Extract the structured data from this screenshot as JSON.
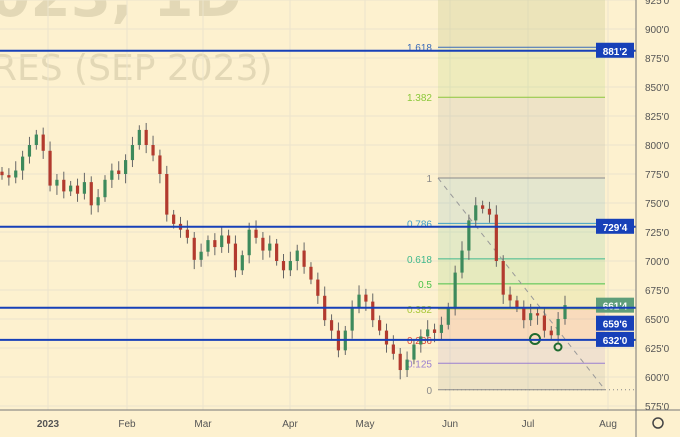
{
  "watermark": {
    "line1": "023, 1D",
    "line2": "RES (SEP 2023)"
  },
  "colors": {
    "background": "#fdf1cf",
    "up": "#3d8a5c",
    "down": "#b23a2e",
    "hline": "#1740b8",
    "grid": "#ebe4cc"
  },
  "chart_data": {
    "type": "candlestick",
    "x_ticks": [
      "2023",
      "Feb",
      "Mar",
      "Apr",
      "May",
      "Jun",
      "Jul",
      "Aug"
    ],
    "y_ticks": [
      "575'0",
      "600'0",
      "625'0",
      "650'0",
      "675'0",
      "700'0",
      "725'0",
      "750'0",
      "775'0",
      "800'0",
      "825'0",
      "850'0",
      "875'0",
      "900'0",
      "925'0"
    ],
    "ylim": [
      575,
      925
    ],
    "closes": [
      774,
      772,
      778,
      790,
      800,
      809,
      795,
      765,
      770,
      760,
      765,
      758,
      768,
      748,
      755,
      770,
      778,
      775,
      787,
      800,
      813,
      800,
      791,
      775,
      740,
      732,
      727,
      720,
      701,
      708,
      718,
      712,
      722,
      715,
      692,
      705,
      727,
      720,
      709,
      715,
      700,
      692,
      700,
      709,
      695,
      684,
      670,
      649,
      640,
      623,
      640,
      660,
      671,
      665,
      649,
      640,
      628,
      620,
      606,
      615,
      628,
      635,
      641,
      638,
      645,
      660,
      690,
      709,
      735,
      748,
      745,
      740,
      700,
      671,
      666,
      660,
      649,
      655,
      653,
      640,
      636,
      650,
      662
    ],
    "price_lines": [
      {
        "value": 881.25,
        "label": "881'2"
      },
      {
        "value": 729.5,
        "label": "729'4"
      },
      {
        "value": 661.5,
        "label": "661'4",
        "color": "#5f9e7a"
      },
      {
        "value": 659.75,
        "label": "659'6"
      },
      {
        "value": 632,
        "label": "632'0"
      }
    ],
    "fibonacci": {
      "low": 589,
      "high": 771.5,
      "levels": [
        {
          "ratio": 0,
          "label": "0",
          "color": "#8a8a8a"
        },
        {
          "ratio": 0.125,
          "label": "0.125",
          "color": "#9a7fd0"
        },
        {
          "ratio": 0.236,
          "label": "0.236",
          "color": "#e04a3a"
        },
        {
          "ratio": 0.382,
          "label": "0.382",
          "color": "#a8c83a"
        },
        {
          "ratio": 0.5,
          "label": "0.5",
          "color": "#4cc24a"
        },
        {
          "ratio": 0.618,
          "label": "0.618",
          "color": "#3fb88c"
        },
        {
          "ratio": 0.786,
          "label": "0.786",
          "color": "#3fa0c8"
        },
        {
          "ratio": 1,
          "label": "1",
          "color": "#8a8a8a"
        },
        {
          "ratio": 1.382,
          "label": "1.382",
          "color": "#8cc83a"
        },
        {
          "ratio": 1.618,
          "label": "1.618",
          "color": "#3a6ab8"
        }
      ]
    }
  }
}
